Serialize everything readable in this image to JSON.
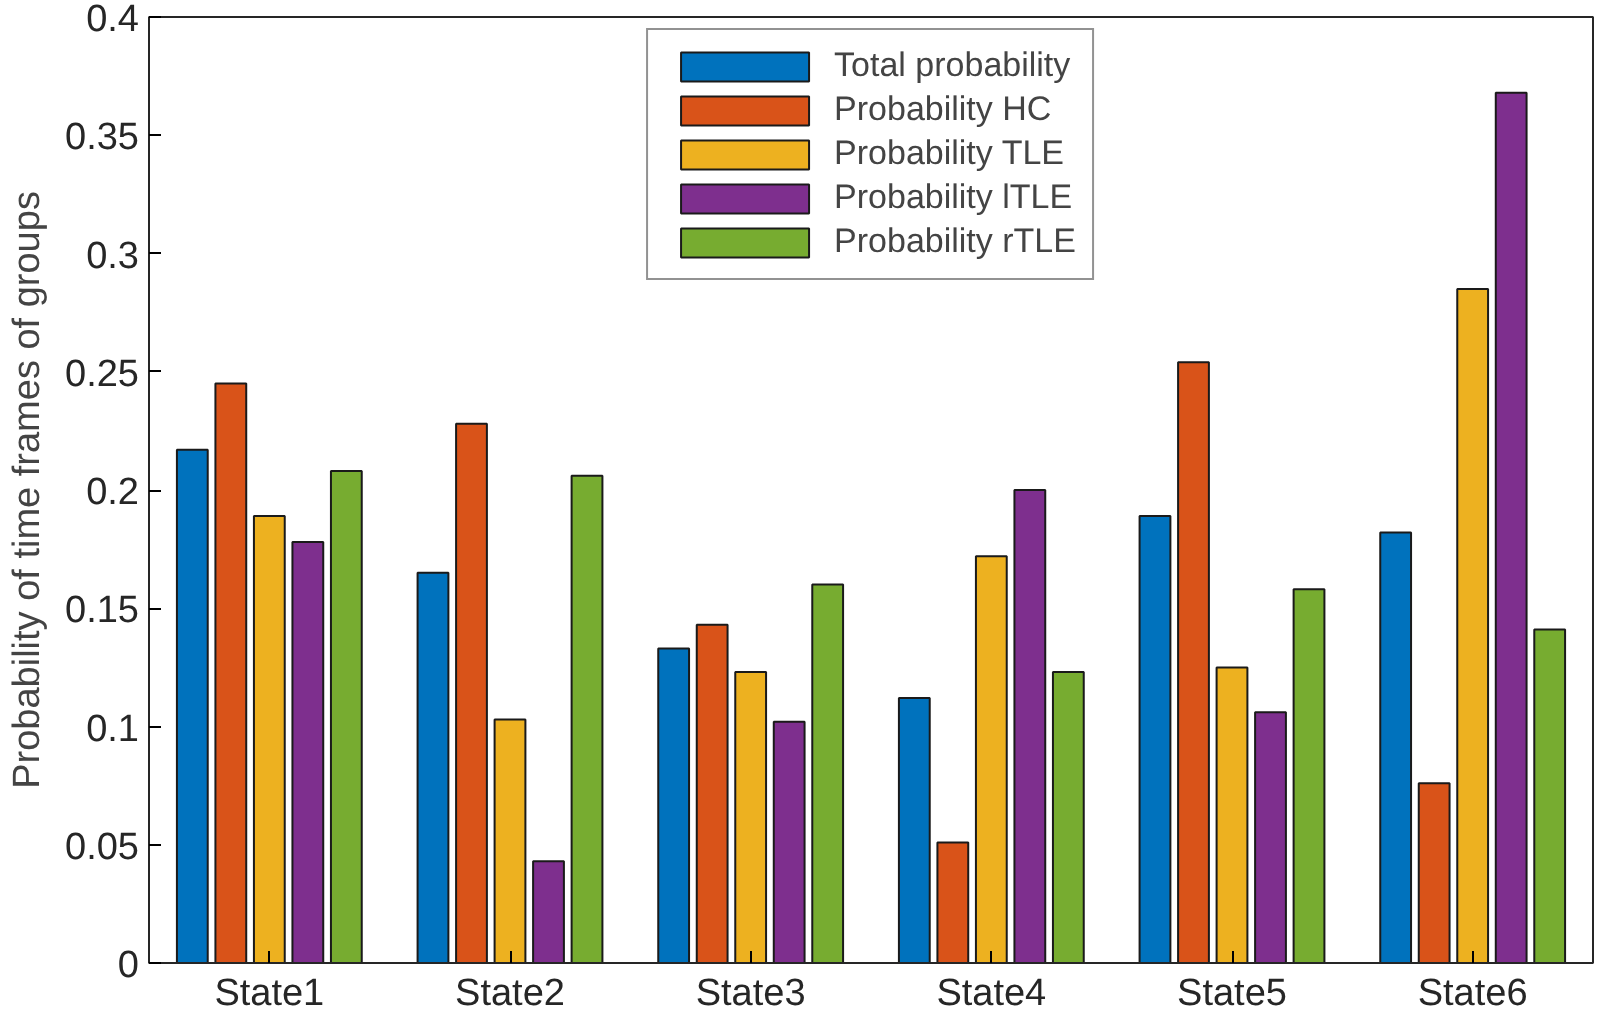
{
  "chart_data": {
    "type": "bar",
    "ylabel": "Probability of time frames of groups",
    "categories": [
      "State1",
      "State2",
      "State3",
      "State4",
      "State5",
      "State6"
    ],
    "series": [
      {
        "name": "Total probability",
        "color": "#0072bd",
        "values": [
          0.217,
          0.165,
          0.133,
          0.112,
          0.189,
          0.182
        ]
      },
      {
        "name": "Probability HC",
        "color": "#d95319",
        "values": [
          0.245,
          0.228,
          0.143,
          0.051,
          0.254,
          0.076
        ]
      },
      {
        "name": "Probability TLE",
        "color": "#edb120",
        "values": [
          0.189,
          0.103,
          0.123,
          0.172,
          0.125,
          0.285
        ]
      },
      {
        "name": "Probability lTLE",
        "color": "#7e2f8e",
        "values": [
          0.178,
          0.043,
          0.102,
          0.2,
          0.106,
          0.368
        ]
      },
      {
        "name": "Probability rTLE",
        "color": "#77ac30",
        "values": [
          0.208,
          0.206,
          0.16,
          0.123,
          0.158,
          0.141
        ]
      }
    ],
    "ylim": [
      0,
      0.4
    ],
    "yticks": [
      0,
      0.05,
      0.1,
      0.15,
      0.2,
      0.25,
      0.3,
      0.35,
      0.4
    ],
    "grid": false,
    "legend": "top"
  }
}
